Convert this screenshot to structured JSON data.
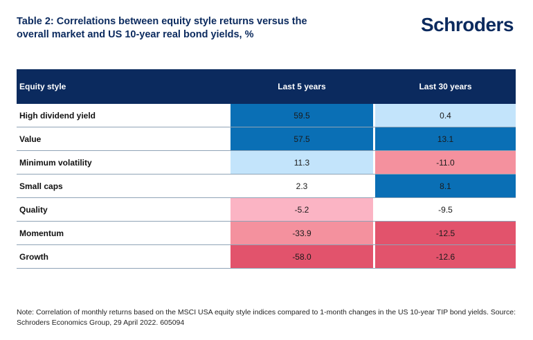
{
  "header": {
    "title": "Table 2: Correlations between equity style returns versus the overall market and US 10-year real bond yields, %",
    "logo_text": "Schroders"
  },
  "table": {
    "columns": [
      "Equity style",
      "Last 5 years",
      "Last 30 years"
    ],
    "rows": [
      {
        "style": "High dividend yield",
        "last5": "59.5",
        "last5_color": "#0a6fb5",
        "last30": "0.4",
        "last30_color": "#c3e4fb"
      },
      {
        "style": "Value",
        "last5": "57.5",
        "last5_color": "#0a6fb5",
        "last30": "13.1",
        "last30_color": "#0a6fb5"
      },
      {
        "style": "Minimum volatility",
        "last5": "11.3",
        "last5_color": "#c3e4fb",
        "last30": "-11.0",
        "last30_color": "#f4919e"
      },
      {
        "style": "Small caps",
        "last5": "2.3",
        "last5_color": "#ffffff",
        "last30": "8.1",
        "last30_color": "#0a6fb5"
      },
      {
        "style": "Quality",
        "last5": "-5.2",
        "last5_color": "#fbb4c4",
        "last30": "-9.5",
        "last30_color": "#ffffff"
      },
      {
        "style": "Momentum",
        "last5": "-33.9",
        "last5_color": "#f4919e",
        "last30": "-12.5",
        "last30_color": "#e2536c"
      },
      {
        "style": "Growth",
        "last5": "-58.0",
        "last5_color": "#e2536c",
        "last30": "-12.6",
        "last30_color": "#e2536c"
      }
    ]
  },
  "footer": {
    "note": "Note: Correlation of monthly returns based on the MSCI USA equity style indices compared to 1-month changes in the US 10-year TIP bond yields. Source: Schroders Economics Group, 29 April 2022. 605094"
  }
}
